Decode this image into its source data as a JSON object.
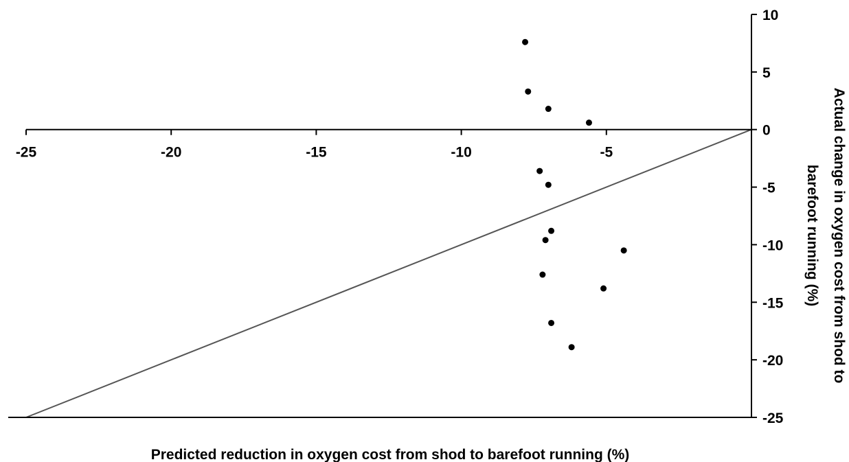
{
  "chart_data": {
    "type": "scatter",
    "title": "",
    "xlabel": "Predicted reduction in oxygen cost from shod to barefoot running (%)",
    "ylabel_lines": [
      "Actual change in oxygen cost from shod to",
      "barefoot running (%)"
    ],
    "xlim": [
      -25,
      0
    ],
    "ylim": [
      -25,
      10
    ],
    "x_ticks": [
      -25,
      -20,
      -15,
      -10,
      -5
    ],
    "y_ticks": [
      10,
      5,
      0,
      -5,
      -10,
      -15,
      -20,
      -25
    ],
    "grid": false,
    "legend": "none",
    "points": [
      {
        "x": -7.8,
        "y": 7.6
      },
      {
        "x": -7.7,
        "y": 3.3
      },
      {
        "x": -7.0,
        "y": 1.8
      },
      {
        "x": -5.6,
        "y": 0.6
      },
      {
        "x": -7.3,
        "y": -3.6
      },
      {
        "x": -7.0,
        "y": -4.8
      },
      {
        "x": -6.9,
        "y": -8.8
      },
      {
        "x": -7.1,
        "y": -9.6
      },
      {
        "x": -4.4,
        "y": -10.5
      },
      {
        "x": -7.2,
        "y": -12.6
      },
      {
        "x": -5.1,
        "y": -13.8
      },
      {
        "x": -6.9,
        "y": -16.8
      },
      {
        "x": -6.2,
        "y": -18.9
      }
    ],
    "reference_line": {
      "from": [
        -25,
        -25
      ],
      "to": [
        0,
        0
      ]
    },
    "marker_color": "#000000",
    "line_color": "#555555"
  }
}
